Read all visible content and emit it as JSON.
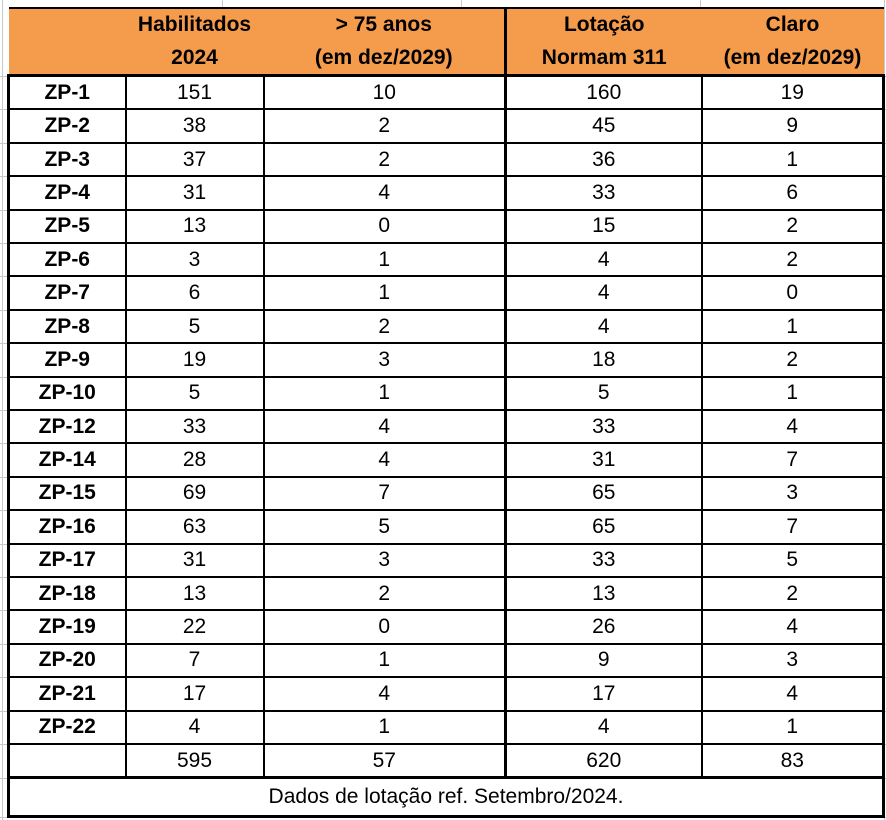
{
  "table": {
    "columns": [
      {
        "line1": "",
        "line2": ""
      },
      {
        "line1": "Habilitados",
        "line2": "2024"
      },
      {
        "line1": "> 75 anos",
        "line2": "(em dez/2029)"
      },
      {
        "line1": "Lotação",
        "line2": "Normam 311"
      },
      {
        "line1": "Claro",
        "line2": "(em dez/2029)"
      }
    ],
    "rows": [
      {
        "label": "ZP-1",
        "values": [
          "151",
          "10",
          "160",
          "19"
        ]
      },
      {
        "label": "ZP-2",
        "values": [
          "38",
          "2",
          "45",
          "9"
        ]
      },
      {
        "label": "ZP-3",
        "values": [
          "37",
          "2",
          "36",
          "1"
        ]
      },
      {
        "label": "ZP-4",
        "values": [
          "31",
          "4",
          "33",
          "6"
        ]
      },
      {
        "label": "ZP-5",
        "values": [
          "13",
          "0",
          "15",
          "2"
        ]
      },
      {
        "label": "ZP-6",
        "values": [
          "3",
          "1",
          "4",
          "2"
        ]
      },
      {
        "label": "ZP-7",
        "values": [
          "6",
          "1",
          "4",
          "0"
        ]
      },
      {
        "label": "ZP-8",
        "values": [
          "5",
          "2",
          "4",
          "1"
        ]
      },
      {
        "label": "ZP-9",
        "values": [
          "19",
          "3",
          "18",
          "2"
        ]
      },
      {
        "label": "ZP-10",
        "values": [
          "5",
          "1",
          "5",
          "1"
        ]
      },
      {
        "label": "ZP-12",
        "values": [
          "33",
          "4",
          "33",
          "4"
        ]
      },
      {
        "label": "ZP-14",
        "values": [
          "28",
          "4",
          "31",
          "7"
        ]
      },
      {
        "label": "ZP-15",
        "values": [
          "69",
          "7",
          "65",
          "3"
        ]
      },
      {
        "label": "ZP-16",
        "values": [
          "63",
          "5",
          "65",
          "7"
        ]
      },
      {
        "label": "ZP-17",
        "values": [
          "31",
          "3",
          "33",
          "5"
        ]
      },
      {
        "label": "ZP-18",
        "values": [
          "13",
          "2",
          "13",
          "2"
        ]
      },
      {
        "label": "ZP-19",
        "values": [
          "22",
          "0",
          "26",
          "4"
        ]
      },
      {
        "label": "ZP-20",
        "values": [
          "7",
          "1",
          "9",
          "3"
        ]
      },
      {
        "label": "ZP-21",
        "values": [
          "17",
          "4",
          "17",
          "4"
        ]
      },
      {
        "label": "ZP-22",
        "values": [
          "4",
          "1",
          "4",
          "1"
        ]
      }
    ],
    "totals": {
      "label": "",
      "values": [
        "595",
        "57",
        "620",
        "83"
      ]
    },
    "footnote": "Dados de lotação ref. Setembro/2024."
  },
  "colors": {
    "header_bg": "#f59b4c",
    "border": "#000000",
    "gridline": "#c9c9c9"
  }
}
